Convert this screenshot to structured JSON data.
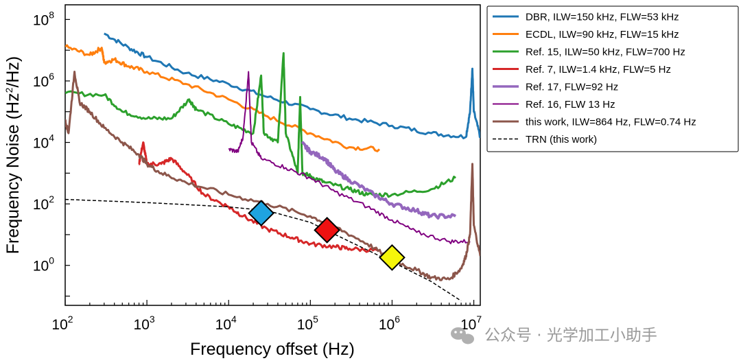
{
  "chart_data": {
    "type": "line",
    "xlabel": "Frequency offset (Hz)",
    "ylabel_main": "Frequency Noise (Hz",
    "ylabel_sup": "2",
    "ylabel_tail": "/Hz)",
    "xscale": "log",
    "yscale": "log",
    "xlim": [
      100,
      12000000
    ],
    "ylim": [
      0.05,
      300000000.0
    ],
    "x_ticks": [
      {
        "base": "10",
        "exp": "2",
        "value": 100
      },
      {
        "base": "10",
        "exp": "3",
        "value": 1000
      },
      {
        "base": "10",
        "exp": "4",
        "value": 10000
      },
      {
        "base": "10",
        "exp": "5",
        "value": 100000
      },
      {
        "base": "10",
        "exp": "6",
        "value": 1000000
      },
      {
        "base": "10",
        "exp": "7",
        "value": 10000000
      }
    ],
    "y_ticks": [
      {
        "base": "10",
        "exp": "0",
        "value": 1
      },
      {
        "base": "10",
        "exp": "2",
        "value": 100
      },
      {
        "base": "10",
        "exp": "4",
        "value": 10000
      },
      {
        "base": "10",
        "exp": "6",
        "value": 1000000
      },
      {
        "base": "10",
        "exp": "8",
        "value": 100000000
      }
    ],
    "legend_position": "outside-right-top",
    "series": [
      {
        "name": "DBR, ILW=150 kHz, FLW=53 kHz",
        "color": "#1f77b4",
        "width": 3,
        "points": [
          [
            300,
            35000000.0
          ],
          [
            600,
            12000000.0
          ],
          [
            1000,
            6000000.0
          ],
          [
            3000,
            1800000.0
          ],
          [
            10000,
            800000.0
          ],
          [
            30000,
            300000.0
          ],
          [
            100000,
            120000.0
          ],
          [
            300000,
            60000.0
          ],
          [
            1000000,
            35000.0
          ],
          [
            3000000,
            20000.0
          ],
          [
            8000000,
            15000.0
          ],
          [
            9000000,
            100000.0
          ],
          [
            9600000,
            2500000.0
          ],
          [
            10000000,
            100000.0
          ],
          [
            12000000,
            15000.0
          ]
        ]
      },
      {
        "name": "ECDL, ILW=90 kHz, FLW=15 kHz",
        "color": "#ff7f0e",
        "width": 3,
        "points": [
          [
            100,
            13000000.0
          ],
          [
            200,
            7000000.0
          ],
          [
            280,
            12000000.0
          ],
          [
            300,
            4000000.0
          ],
          [
            400,
            5000000.0
          ],
          [
            600,
            3000000.0
          ],
          [
            1000,
            2000000.0
          ],
          [
            3000,
            800000.0
          ],
          [
            10000,
            250000.0
          ],
          [
            30000,
            70000.0
          ],
          [
            100000,
            20000.0
          ],
          [
            300000,
            7000.0
          ],
          [
            700000,
            6000.0
          ]
        ]
      },
      {
        "name": "Ref. 15, ILW=50 kHz, FLW=700 Hz",
        "color": "#2ca02c",
        "width": 3,
        "points": [
          [
            100,
            400000.0
          ],
          [
            300,
            350000.0
          ],
          [
            500,
            100000.0
          ],
          [
            1000,
            60000.0
          ],
          [
            2000,
            60000.0
          ],
          [
            3300,
            250000.0
          ],
          [
            4000,
            120000.0
          ],
          [
            10000,
            40000.0
          ],
          [
            20000,
            20000.0
          ],
          [
            25000,
            1500000.0
          ],
          [
            27000,
            20000.0
          ],
          [
            40000,
            10000.0
          ],
          [
            47000,
            8000000.0
          ],
          [
            50000,
            20000.0
          ],
          [
            70000,
            1000.0
          ],
          [
            75000,
            300000.0
          ],
          [
            80000,
            1000.0
          ],
          [
            100000,
            800.0
          ],
          [
            150000,
            500.0
          ],
          [
            300000,
            300.0
          ],
          [
            500000,
            200.0
          ],
          [
            1000000,
            200.0
          ],
          [
            3000000,
            300.0
          ],
          [
            6000000,
            700.0
          ]
        ]
      },
      {
        "name": "Ref. 7, ILW=1.4 kHz, FLW=5 Hz",
        "color": "#d62728",
        "width": 3,
        "points": [
          [
            800,
            2000.0
          ],
          [
            900,
            10000.0
          ],
          [
            1000,
            2000.0
          ],
          [
            1500,
            2000.0
          ],
          [
            2000,
            3000.0
          ],
          [
            3000,
            1000.0
          ],
          [
            5000,
            200.0
          ],
          [
            10000,
            80
          ],
          [
            15000,
            40
          ],
          [
            30000,
            15
          ],
          [
            60000,
            8
          ],
          [
            100000,
            5
          ],
          [
            200000,
            4
          ],
          [
            300000,
            3.5
          ],
          [
            700000,
            3
          ]
        ]
      },
      {
        "name": "Ref. 17, FLW=92 Hz",
        "color": "#9467bd",
        "width": 4,
        "points": [
          [
            80000,
            9000.0
          ],
          [
            100000,
            5000.0
          ],
          [
            150000,
            3000.0
          ],
          [
            200000,
            1200.0
          ],
          [
            300000,
            600.0
          ],
          [
            600000,
            200.0
          ],
          [
            1000000,
            100.0
          ],
          [
            2000000,
            60
          ],
          [
            3000000,
            40
          ],
          [
            6000000,
            40
          ]
        ]
      },
      {
        "name": "Ref. 16, FLW 13 Hz",
        "color": "#800080",
        "width": 2,
        "points": [
          [
            10000,
            6000.0
          ],
          [
            13000,
            5000.0
          ],
          [
            15000,
            15000.0
          ],
          [
            17500,
            2000000.0
          ],
          [
            19000,
            10000.0
          ],
          [
            25000,
            3000.0
          ],
          [
            50000,
            1500.0
          ],
          [
            100000,
            700.0
          ],
          [
            200000,
            250.0
          ],
          [
            500000,
            80
          ],
          [
            1000000,
            30
          ],
          [
            2000000,
            12
          ],
          [
            5000000,
            6
          ],
          [
            9000000,
            6
          ]
        ]
      },
      {
        "name": "this work, ILW=864 Hz, FLW=0.74 Hz",
        "color": "#8c564b",
        "width": 3,
        "points": [
          [
            100,
            50000.0
          ],
          [
            110,
            20000.0
          ],
          [
            130,
            2000000.0
          ],
          [
            150,
            200000.0
          ],
          [
            200,
            100000.0
          ],
          [
            300,
            30000.0
          ],
          [
            500,
            10000.0
          ],
          [
            800,
            4000.0
          ],
          [
            1000,
            2000.0
          ],
          [
            1500,
            1000.0
          ],
          [
            3000,
            500.0
          ],
          [
            10000,
            200.0
          ],
          [
            30000,
            100.0
          ],
          [
            100000,
            40
          ],
          [
            200000,
            18
          ],
          [
            500000,
            5
          ],
          [
            1000000,
            1.5
          ],
          [
            2000000,
            0.7
          ],
          [
            3000000,
            0.4
          ],
          [
            5000000,
            0.35
          ],
          [
            7000000,
            0.8
          ],
          [
            8000000,
            2
          ],
          [
            9000000,
            10
          ],
          [
            9600000,
            2000.0
          ],
          [
            10000000,
            20
          ],
          [
            12000000,
            2
          ]
        ]
      },
      {
        "name": "TRN (this work)",
        "color": "#000000",
        "width": 1.5,
        "dash": "5,3",
        "points": [
          [
            100,
            140
          ],
          [
            300,
            125
          ],
          [
            1000,
            110
          ],
          [
            3000,
            95
          ],
          [
            10000,
            80
          ],
          [
            30000,
            60
          ],
          [
            100000,
            25
          ],
          [
            300000,
            6
          ],
          [
            1000000,
            1.3
          ],
          [
            3000000,
            0.3
          ],
          [
            7000000,
            0.07
          ]
        ]
      }
    ],
    "markers": [
      {
        "name": "marker-blue-diamond",
        "x": 25000,
        "y": 50,
        "color": "#1fa3e0"
      },
      {
        "name": "marker-red-diamond",
        "x": 160000,
        "y": 14,
        "color": "#ee1111"
      },
      {
        "name": "marker-yellow-diamond",
        "x": 1000000,
        "y": 1.8,
        "color": "#f5f50a"
      }
    ]
  },
  "watermark": "公众号 · 光学加工小助手"
}
